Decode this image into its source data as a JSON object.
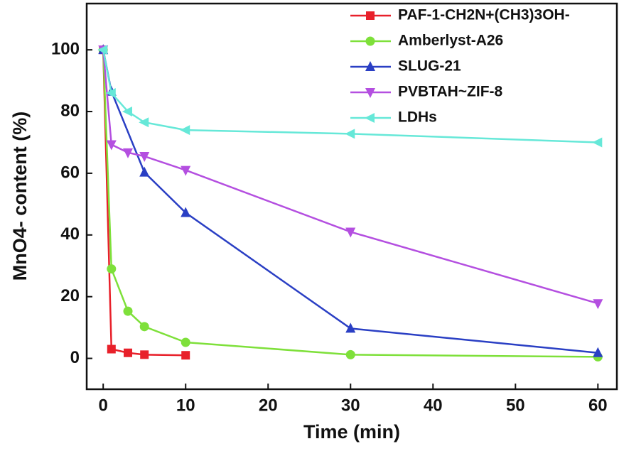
{
  "chart_data": {
    "type": "line",
    "x_label": "Time (min)",
    "y_label": "MnO4- content (%)",
    "xlim": [
      -2,
      62.3
    ],
    "ylim": [
      -10,
      115
    ],
    "xticks": [
      0,
      10,
      20,
      30,
      40,
      50,
      60
    ],
    "yticks": [
      0,
      20,
      40,
      60,
      80,
      100
    ],
    "legend": "top-right",
    "series": [
      {
        "name": "PAF-1-CH2N+(CH3)3OH-",
        "color": "#e8202a",
        "marker": "square",
        "x": [
          0,
          1,
          3,
          5,
          10
        ],
        "values": [
          100,
          3,
          1.8,
          1.2,
          1
        ]
      },
      {
        "name": "Amberlyst-A26",
        "color": "#7ee03a",
        "marker": "circle",
        "x": [
          0,
          1,
          3,
          5,
          10,
          30,
          60
        ],
        "values": [
          100,
          29,
          15.3,
          10.3,
          5.2,
          1.2,
          0.5
        ]
      },
      {
        "name": "SLUG-21",
        "color": "#2a3fc4",
        "marker": "triangle-up",
        "x": [
          0,
          1,
          5,
          10,
          30,
          60
        ],
        "values": [
          100,
          86.5,
          60.3,
          47.2,
          9.7,
          1.8
        ]
      },
      {
        "name": "PVBTAH~ZIF-8",
        "color": "#b44fe0",
        "marker": "triangle-down",
        "x": [
          0,
          1,
          3,
          5,
          10,
          30,
          60
        ],
        "values": [
          100,
          69.3,
          66.7,
          65.5,
          61,
          41,
          17.8
        ]
      },
      {
        "name": "LDHs",
        "color": "#66e8d8",
        "marker": "triangle-left",
        "x": [
          0,
          1,
          3,
          5,
          10,
          30,
          60
        ],
        "values": [
          100,
          86,
          80,
          76.5,
          74,
          72.8,
          70
        ]
      }
    ]
  }
}
